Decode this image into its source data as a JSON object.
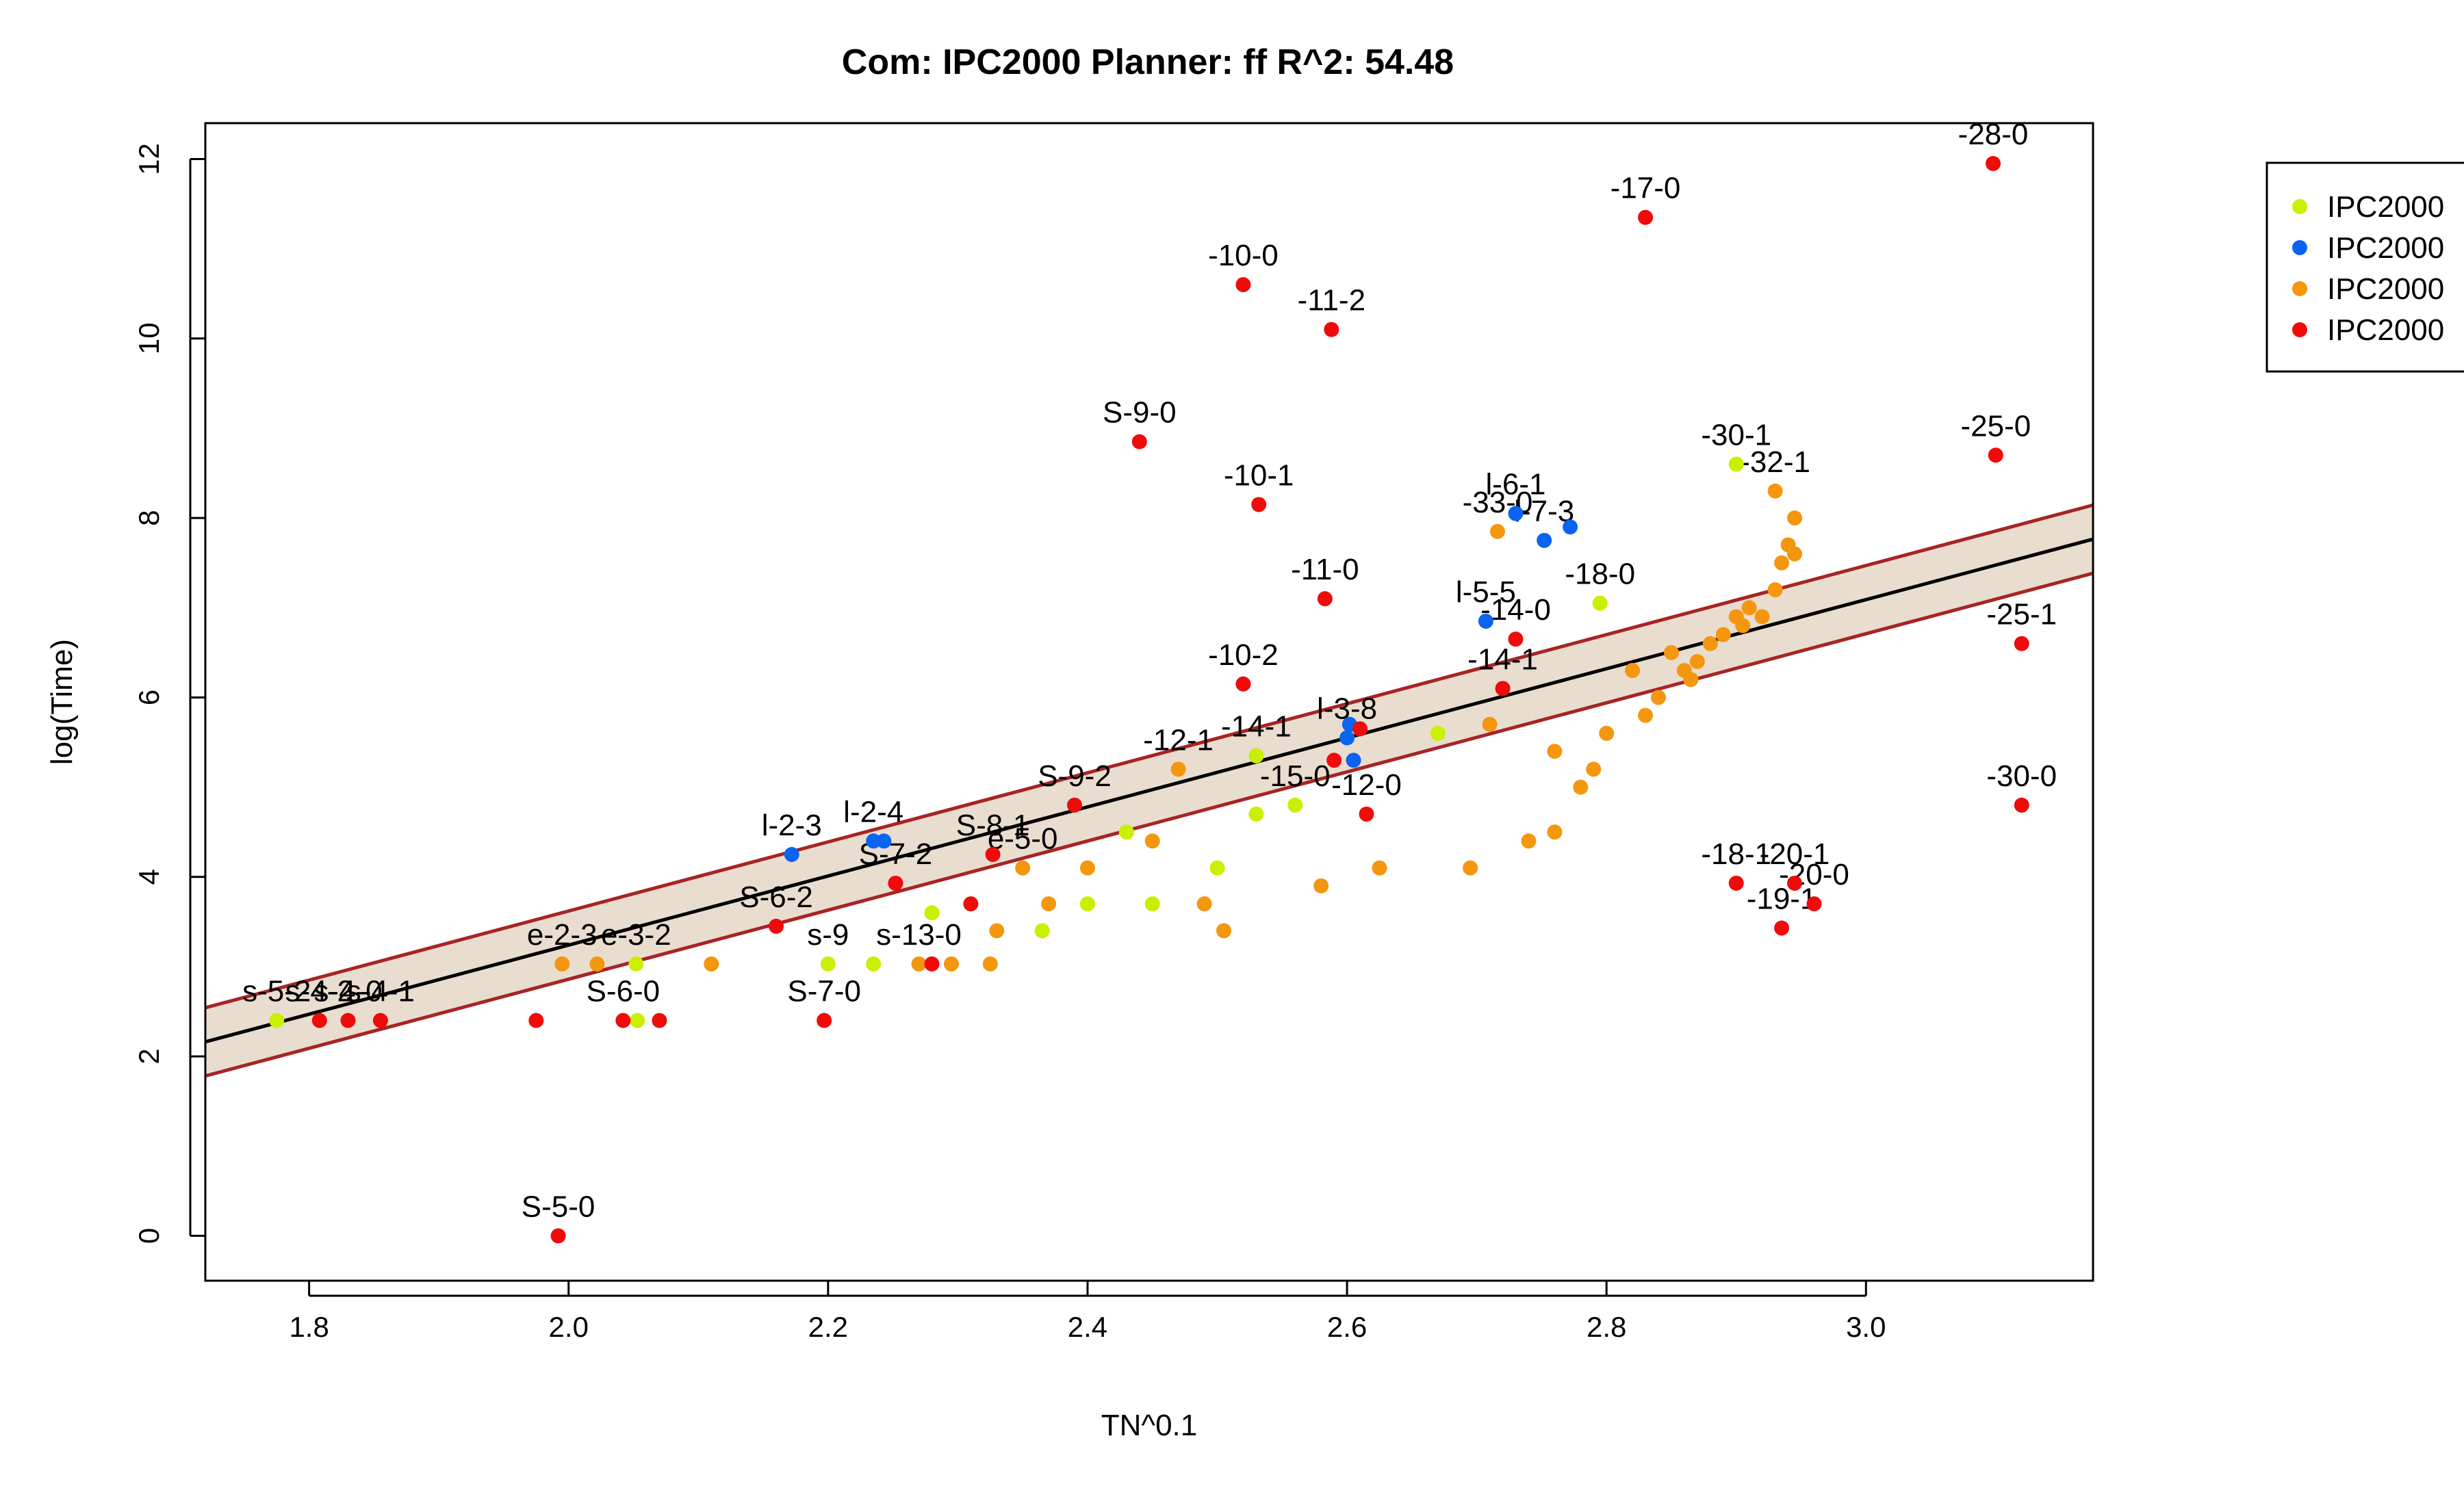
{
  "chart_data": {
    "type": "scatter",
    "title": "Com: IPC2000 Planner: ff R^2: 54.48",
    "xlabel": "TN^0.1",
    "ylabel": "log(Time)",
    "xlim": [
      1.72,
      3.175
    ],
    "ylim": [
      -0.5,
      12.4
    ],
    "xticks": [
      "1.8",
      "2.0",
      "2.2",
      "2.4",
      "2.6",
      "2.8",
      "3.0"
    ],
    "yticks": [
      "0",
      "2",
      "4",
      "6",
      "8",
      "10",
      "12"
    ],
    "fit": {
      "intercept": -4.46,
      "slope": 3.85,
      "band_inner": 0.12,
      "band_outer": 0.38
    },
    "legend": [
      {
        "label": "IPC2000",
        "color": "#c8f000"
      },
      {
        "label": "IPC2000",
        "color": "#0a64f0"
      },
      {
        "label": "IPC2000",
        "color": "#f5960f"
      },
      {
        "label": "IPC2000",
        "color": "#f00a0a"
      }
    ],
    "series": [
      {
        "name": "IPC2000",
        "color": "#c8f000",
        "points": [
          [
            1.775,
            2.4,
            "s-5-2"
          ],
          [
            2.052,
            3.03,
            "e-3-2"
          ],
          [
            2.053,
            2.4,
            ""
          ],
          [
            2.2,
            3.03,
            "s-9"
          ],
          [
            2.235,
            3.03,
            ""
          ],
          [
            2.28,
            3.6,
            ""
          ],
          [
            2.365,
            3.4,
            ""
          ],
          [
            2.4,
            3.7,
            ""
          ],
          [
            2.43,
            4.5,
            ""
          ],
          [
            2.45,
            3.7,
            ""
          ],
          [
            2.5,
            4.1,
            ""
          ],
          [
            2.53,
            5.35,
            "-14-1"
          ],
          [
            2.53,
            4.7,
            ""
          ],
          [
            2.56,
            4.8,
            "-15-0"
          ],
          [
            2.67,
            5.6,
            ""
          ],
          [
            2.795,
            7.05,
            "-18-0"
          ],
          [
            2.82,
            6.3,
            ""
          ],
          [
            2.9,
            8.6,
            "-30-1"
          ]
        ]
      },
      {
        "name": "IPC2000",
        "color": "#0a64f0",
        "points": [
          [
            2.172,
            4.25,
            "l-2-3"
          ],
          [
            2.235,
            4.4,
            "l-2-4"
          ],
          [
            2.243,
            4.4,
            ""
          ],
          [
            2.6,
            5.55,
            "l-3-8"
          ],
          [
            2.602,
            5.7,
            ""
          ],
          [
            2.605,
            5.3,
            ""
          ],
          [
            2.707,
            6.85,
            "l-5-5"
          ],
          [
            2.73,
            8.05,
            "l-6-1"
          ],
          [
            2.752,
            7.75,
            "l-7-3"
          ],
          [
            2.772,
            7.9,
            ""
          ]
        ]
      },
      {
        "name": "IPC2000",
        "color": "#f5960f",
        "points": [
          [
            1.995,
            3.03,
            "e-2-3"
          ],
          [
            2.022,
            3.03,
            ""
          ],
          [
            2.11,
            3.03,
            ""
          ],
          [
            2.27,
            3.03,
            "s-13-0"
          ],
          [
            2.295,
            3.03,
            ""
          ],
          [
            2.325,
            3.03,
            ""
          ],
          [
            2.33,
            3.4,
            ""
          ],
          [
            2.35,
            4.1,
            "e-5-0"
          ],
          [
            2.37,
            3.7,
            ""
          ],
          [
            2.4,
            4.1,
            ""
          ],
          [
            2.45,
            4.4,
            ""
          ],
          [
            2.47,
            5.2,
            "-12-1"
          ],
          [
            2.49,
            3.7,
            ""
          ],
          [
            2.505,
            3.4,
            ""
          ],
          [
            2.58,
            3.9,
            ""
          ],
          [
            2.625,
            4.1,
            ""
          ],
          [
            2.695,
            4.1,
            ""
          ],
          [
            2.71,
            5.7,
            ""
          ],
          [
            2.716,
            7.85,
            "-33-0"
          ],
          [
            2.74,
            4.4,
            ""
          ],
          [
            2.76,
            4.5,
            ""
          ],
          [
            2.76,
            5.4,
            ""
          ],
          [
            2.78,
            5.0,
            ""
          ],
          [
            2.79,
            5.2,
            ""
          ],
          [
            2.8,
            5.6,
            ""
          ],
          [
            2.82,
            6.3,
            ""
          ],
          [
            2.83,
            5.8,
            ""
          ],
          [
            2.84,
            6.0,
            ""
          ],
          [
            2.85,
            6.5,
            ""
          ],
          [
            2.86,
            6.3,
            ""
          ],
          [
            2.865,
            6.2,
            ""
          ],
          [
            2.87,
            6.4,
            ""
          ],
          [
            2.88,
            6.6,
            ""
          ],
          [
            2.89,
            6.7,
            ""
          ],
          [
            2.9,
            6.9,
            ""
          ],
          [
            2.905,
            6.8,
            ""
          ],
          [
            2.91,
            7.0,
            ""
          ],
          [
            2.92,
            6.9,
            ""
          ],
          [
            2.93,
            7.2,
            ""
          ],
          [
            2.935,
            7.5,
            ""
          ],
          [
            2.94,
            7.7,
            ""
          ],
          [
            2.945,
            7.6,
            ""
          ],
          [
            2.93,
            8.3,
            "-32-1"
          ],
          [
            2.945,
            8.0,
            ""
          ]
        ]
      },
      {
        "name": "IPC2000",
        "color": "#f00a0a",
        "points": [
          [
            1.808,
            2.4,
            "s-4-2"
          ],
          [
            1.83,
            2.4,
            "s-4-0"
          ],
          [
            1.855,
            2.4,
            "s-4-1"
          ],
          [
            1.975,
            2.4,
            ""
          ],
          [
            2.042,
            2.4,
            "S-6-0"
          ],
          [
            2.07,
            2.4,
            ""
          ],
          [
            1.992,
            0.0,
            "S-5-0"
          ],
          [
            2.16,
            3.45,
            "S-6-2"
          ],
          [
            2.197,
            2.4,
            "S-7-0"
          ],
          [
            2.252,
            3.93,
            "S-7-2"
          ],
          [
            2.28,
            3.03,
            ""
          ],
          [
            2.31,
            3.7,
            ""
          ],
          [
            2.327,
            4.25,
            "S-8-1"
          ],
          [
            2.39,
            4.8,
            "S-9-2"
          ],
          [
            2.44,
            8.85,
            "S-9-0"
          ],
          [
            2.52,
            6.15,
            "-10-2"
          ],
          [
            2.52,
            10.6,
            "-10-0"
          ],
          [
            2.532,
            8.15,
            "-10-1"
          ],
          [
            2.583,
            7.1,
            "-11-0"
          ],
          [
            2.588,
            10.1,
            "-11-2"
          ],
          [
            2.59,
            5.3,
            ""
          ],
          [
            2.61,
            5.65,
            ""
          ],
          [
            2.615,
            4.7,
            "-12-0"
          ],
          [
            2.72,
            6.1,
            "-14-1"
          ],
          [
            2.73,
            6.65,
            "-14-0"
          ],
          [
            2.83,
            11.35,
            "-17-0"
          ],
          [
            2.9,
            3.93,
            "-18-1"
          ],
          [
            2.935,
            3.43,
            "-19-1"
          ],
          [
            2.945,
            3.93,
            "-20-1"
          ],
          [
            2.96,
            3.7,
            "-20-0"
          ],
          [
            3.098,
            11.95,
            "-28-0"
          ],
          [
            3.1,
            8.7,
            "-25-0"
          ],
          [
            3.12,
            6.6,
            "-25-1"
          ],
          [
            3.12,
            4.8,
            "-30-0"
          ]
        ]
      }
    ]
  }
}
